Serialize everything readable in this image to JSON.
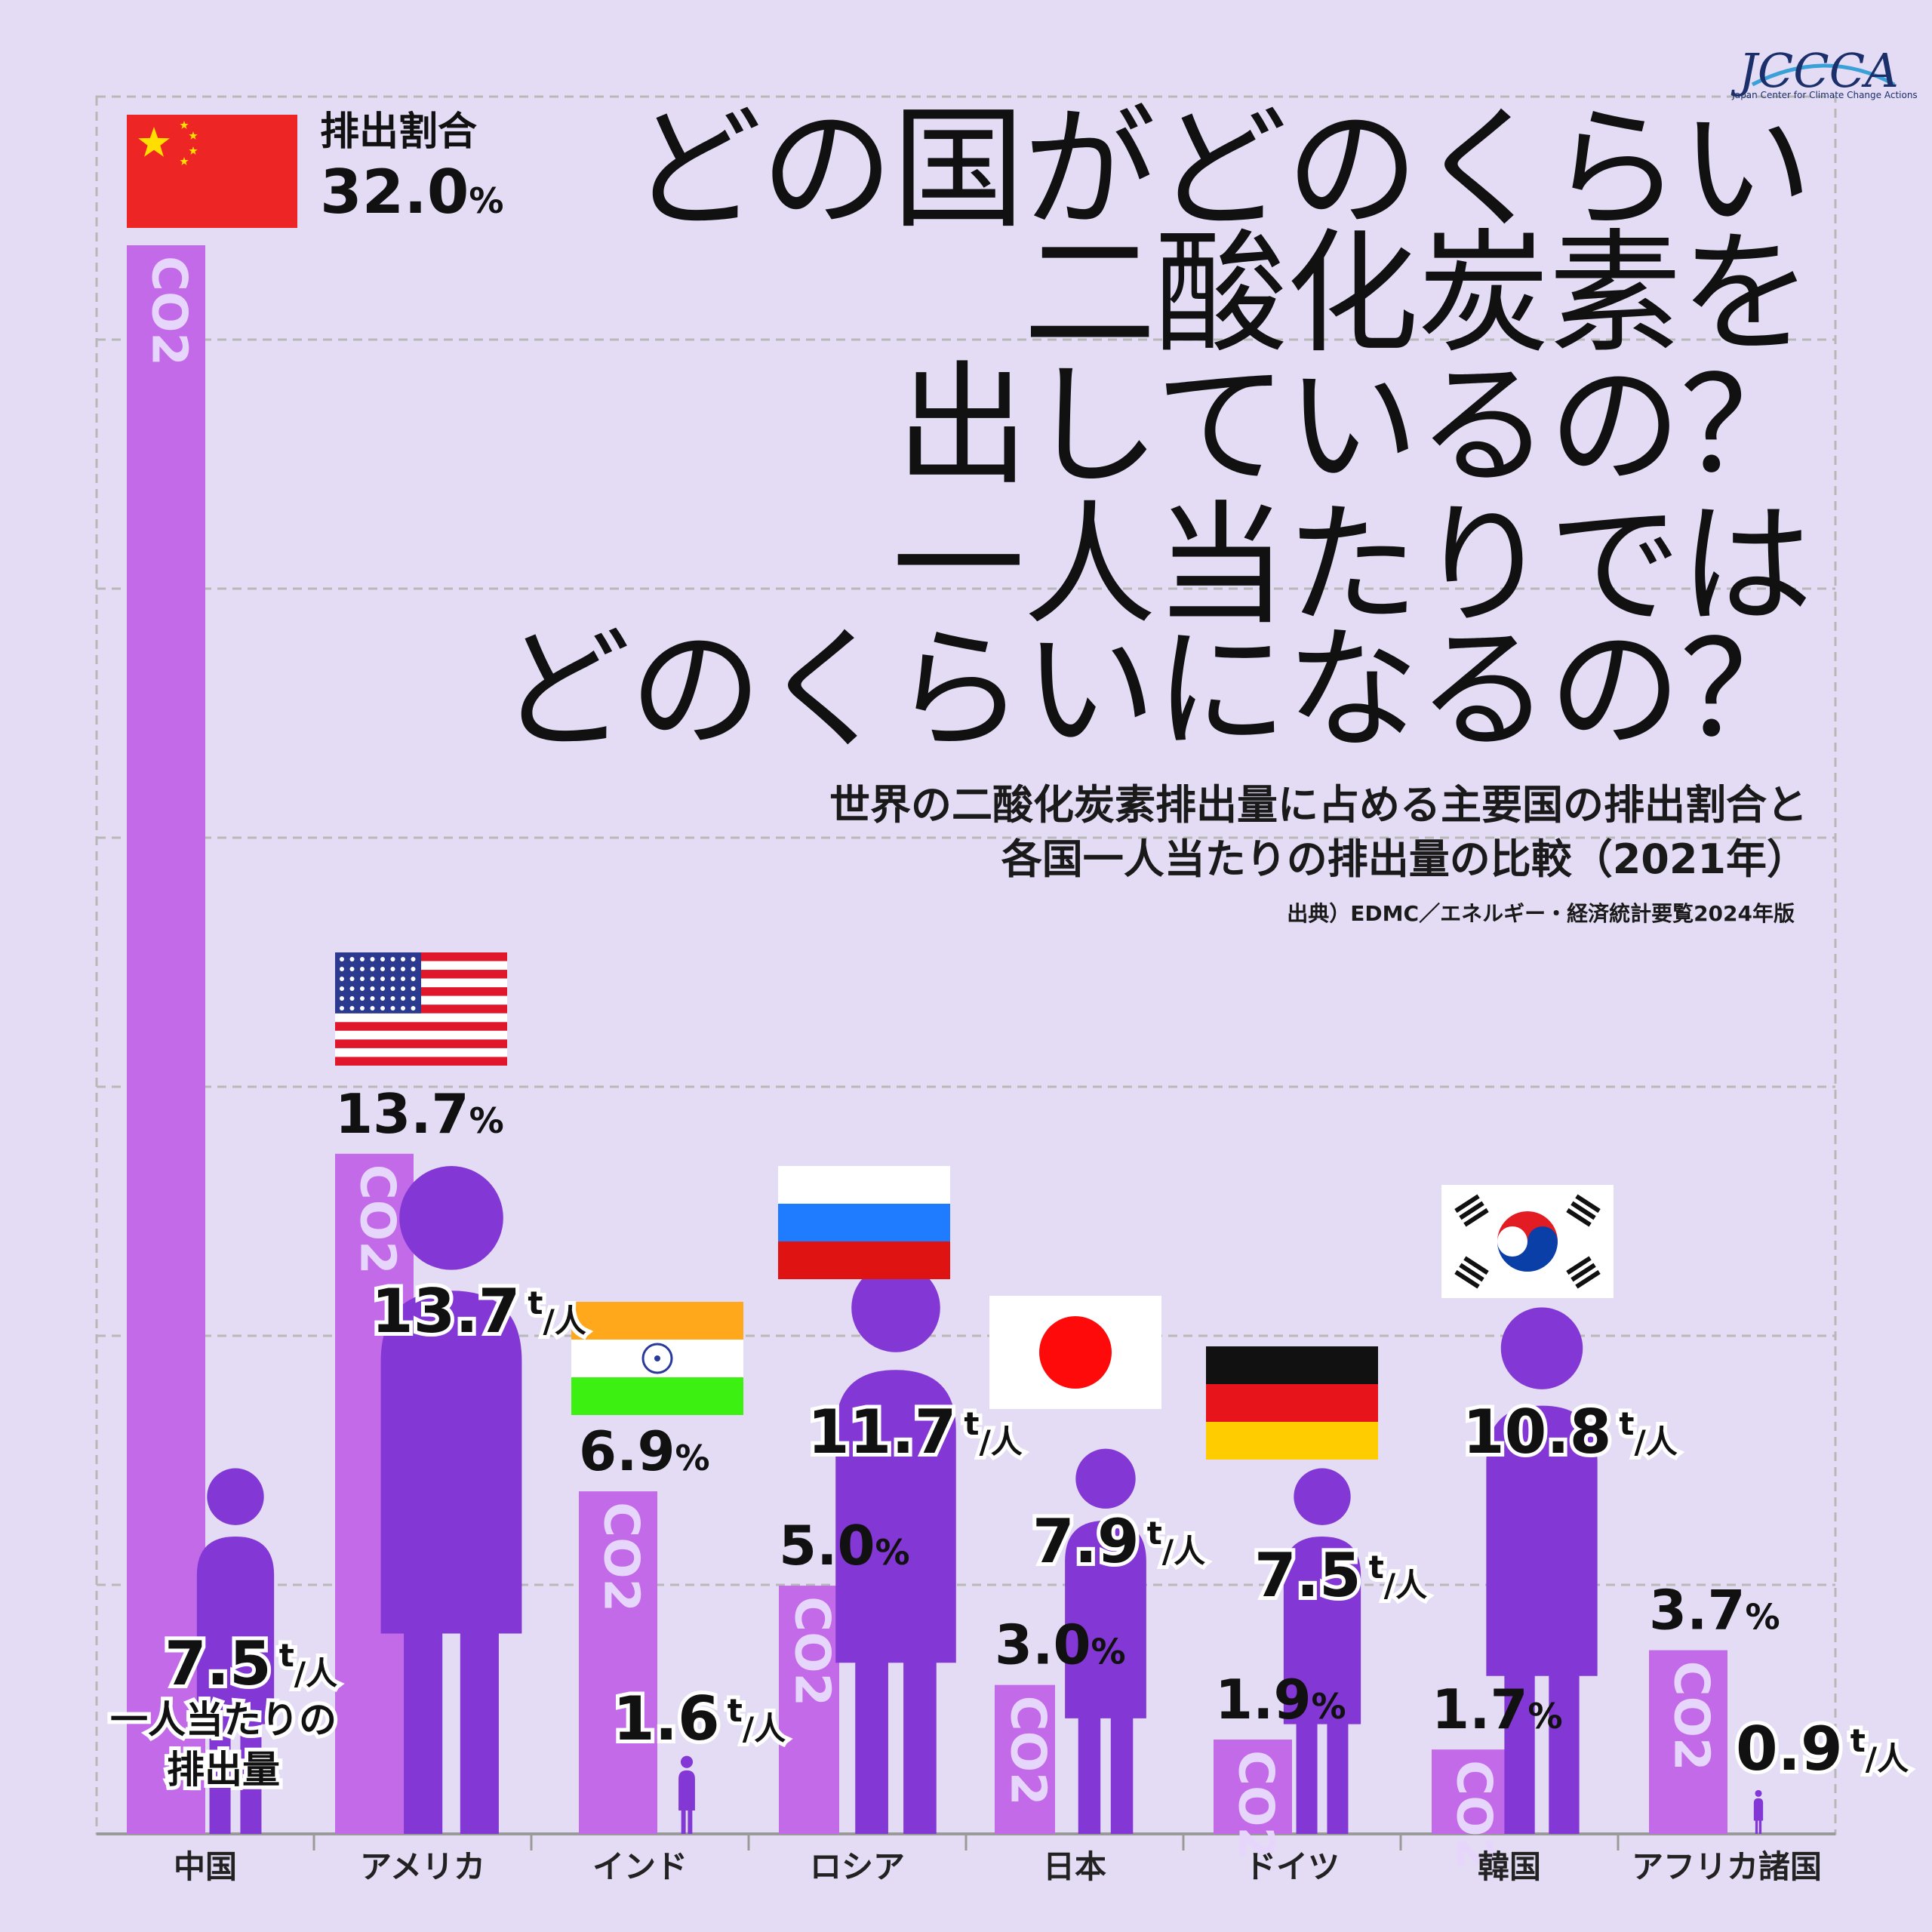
{
  "logo": {
    "text": "JCCCA",
    "tagline": "Japan Center for Climate Change Actions"
  },
  "title_lines": [
    "どの国がどのくらい",
    "二酸化炭素を",
    "出しているの？",
    "一人当たりでは",
    "どのくらいになるの？"
  ],
  "subtitle_lines": [
    "世界の二酸化炭素排出量に占める主要国の排出割合と",
    "各国一人当たりの排出量の比較（2021年）"
  ],
  "source": "出典）EDMC／エネルギー・経済統計要覧2024年版",
  "labels": {
    "share_heading": "排出割合",
    "percap_caption_1": "一人当たりの",
    "percap_caption_2": "排出量",
    "bar_text": "CO2",
    "unit_ton": "t",
    "unit_person": "人",
    "unit_pct": "%"
  },
  "colors": {
    "background": "#e4dcf4",
    "share_bar": "#c26ae8",
    "person_figure": "#8338d6",
    "grid": "#b8b8b8"
  },
  "chart_data": {
    "type": "bar",
    "categories": [
      "中国",
      "アメリカ",
      "インド",
      "ロシア",
      "日本",
      "ドイツ",
      "韓国",
      "アフリカ諸国"
    ],
    "series": [
      {
        "values": [
          32.0,
          13.7,
          6.9,
          5.0,
          3.0,
          1.9,
          1.7,
          3.7
        ]
      },
      {
        "values": [
          7.5,
          13.7,
          1.6,
          11.7,
          7.9,
          7.5,
          10.8,
          0.9
        ]
      }
    ],
    "share_labels": [
      "32.0",
      "13.7",
      "6.9",
      "5.0",
      "3.0",
      "1.9",
      "1.7",
      "3.7"
    ],
    "percap_labels": [
      "7.5",
      "13.7",
      "1.6",
      "11.7",
      "7.9",
      "7.5",
      "10.8",
      "0.9"
    ],
    "flags": [
      "china-flag",
      "usa-flag",
      "india-flag",
      "russia-flag",
      "japan-flag",
      "germany-flag",
      "korea-flag",
      "none"
    ],
    "title": "どの国がどのくらい二酸化炭素を出しているの？一人当たりではどのくらいになるの？",
    "xlabel": "",
    "ylabel": "",
    "grid": true,
    "legend": "none"
  }
}
